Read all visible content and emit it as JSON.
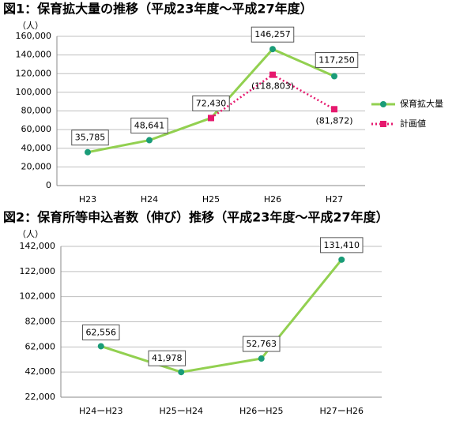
{
  "chart_data": [
    {
      "type": "line",
      "title": "図1：保育拡大量の推移（平成23年度～平成27年度）",
      "y_label": "（人）",
      "categories": [
        "H23",
        "H24",
        "H25",
        "H26",
        "H27"
      ],
      "series": [
        {
          "name": "保育拡大量",
          "color": "#92d050",
          "marker_color": "#1a9c78",
          "values": [
            35785,
            48641,
            72430,
            146257,
            117250
          ],
          "value_labels": [
            "35,785",
            "48,641",
            "72,430",
            "146,257",
            "117,250"
          ]
        },
        {
          "name": "計画値",
          "color": "#e6196e",
          "dotted": true,
          "values": [
            null,
            null,
            72430,
            118803,
            81872
          ],
          "value_labels": [
            null,
            null,
            null,
            "(118,803)",
            "(81,872)"
          ]
        }
      ],
      "ylim": [
        0,
        160000
      ],
      "yticks": [
        0,
        {
          "value": 20000,
          "label": "20,000"
        },
        {
          "value": 40000,
          "label": "40,000"
        },
        {
          "value": 60000,
          "label": "60,000"
        },
        {
          "value": 80000,
          "label": "80,000"
        },
        {
          "value": 100000,
          "label": "100,000"
        },
        {
          "value": 120000,
          "label": "120,000"
        },
        {
          "value": 140000,
          "label": "140,000"
        },
        {
          "value": 160000,
          "label": "160,000"
        }
      ],
      "grid": true,
      "legend": "right"
    },
    {
      "type": "line",
      "title": "図2：保育所等申込者数（伸び）推移（平成23年度～平成27年度）",
      "y_label": "（人）",
      "categories": [
        "H24ーH23",
        "H25ーH24",
        "H26ーH25",
        "H27ーH26"
      ],
      "series": [
        {
          "color": "#92d050",
          "marker_color": "#1a9c78",
          "values": [
            62556,
            41978,
            52763,
            131410
          ],
          "value_labels": [
            "62,556",
            "41,978",
            "52,763",
            "131,410"
          ]
        }
      ],
      "ylim": [
        22000,
        142000
      ],
      "yticks": [
        {
          "value": 22000,
          "label": "22,000"
        },
        {
          "value": 42000,
          "label": "42,000"
        },
        {
          "value": 62000,
          "label": "62,000"
        },
        {
          "value": 82000,
          "label": "82,000"
        },
        {
          "value": 102000,
          "label": "102,000"
        },
        {
          "value": 122000,
          "label": "122,000"
        },
        {
          "value": 142000,
          "label": "142,000"
        }
      ],
      "grid": true
    }
  ]
}
